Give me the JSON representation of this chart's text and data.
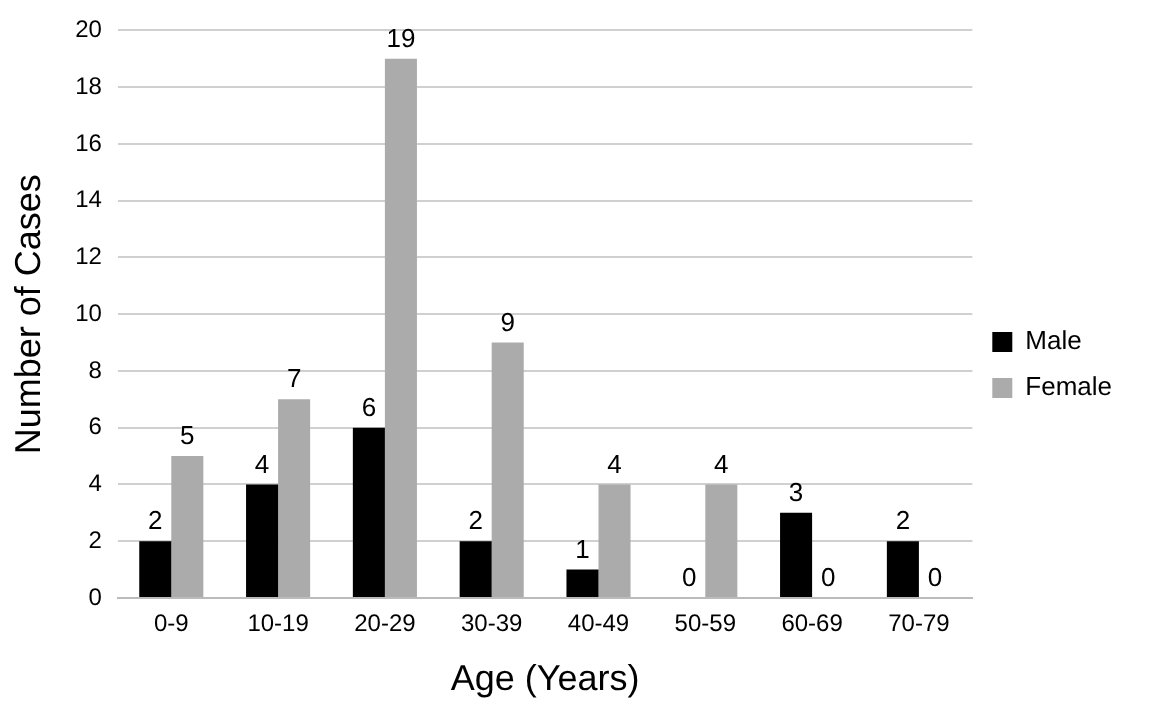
{
  "chart_data": {
    "type": "bar",
    "xlabel": "Age (Years)",
    "ylabel": "Number of Cases",
    "categories": [
      "0-9",
      "10-19",
      "20-29",
      "30-39",
      "40-49",
      "50-59",
      "60-69",
      "70-79"
    ],
    "series": [
      {
        "name": "Male",
        "color": "#000000",
        "values": [
          2,
          4,
          6,
          2,
          1,
          0,
          3,
          2
        ]
      },
      {
        "name": "Female",
        "color": "#ababab",
        "values": [
          5,
          7,
          19,
          9,
          4,
          4,
          0,
          0
        ]
      }
    ],
    "ylim": [
      0,
      20
    ],
    "yticks": [
      0,
      2,
      4,
      6,
      8,
      10,
      12,
      14,
      16,
      18,
      20
    ],
    "grid": "y",
    "legend": "right",
    "data_labels": true
  }
}
